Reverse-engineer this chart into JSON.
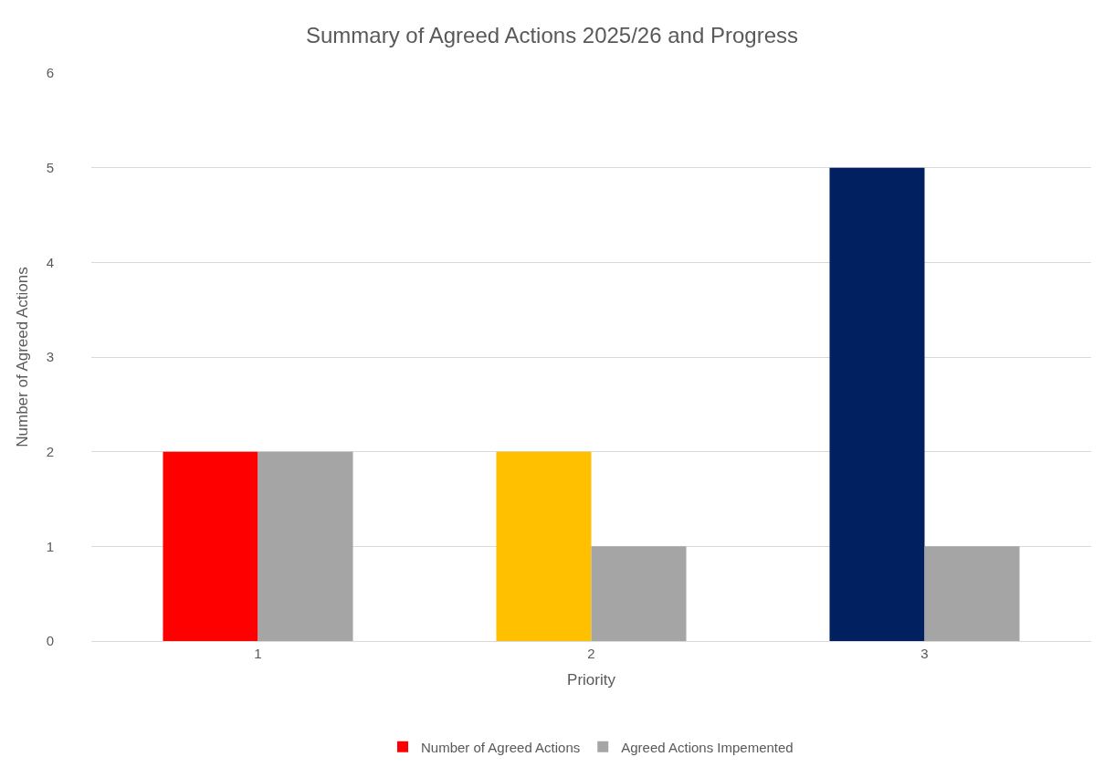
{
  "chart_data": {
    "type": "bar",
    "title": "Summary of Agreed Actions 2025/26 and Progress",
    "xlabel": "Priority",
    "ylabel": "Number of Agreed Actions",
    "categories": [
      "1",
      "2",
      "3"
    ],
    "series": [
      {
        "name": "Number of Agreed Actions",
        "colors": [
          "#ff0000",
          "#ffc000",
          "#002060"
        ],
        "values": [
          2,
          2,
          5
        ]
      },
      {
        "name": "Agreed Actions Impemented",
        "color": "#a5a5a5",
        "values": [
          2,
          1,
          1
        ]
      }
    ],
    "ylim": [
      0,
      6
    ],
    "yticks": [
      0,
      1,
      2,
      3,
      4,
      5,
      6
    ],
    "grid": "y",
    "legend": "bottom"
  }
}
